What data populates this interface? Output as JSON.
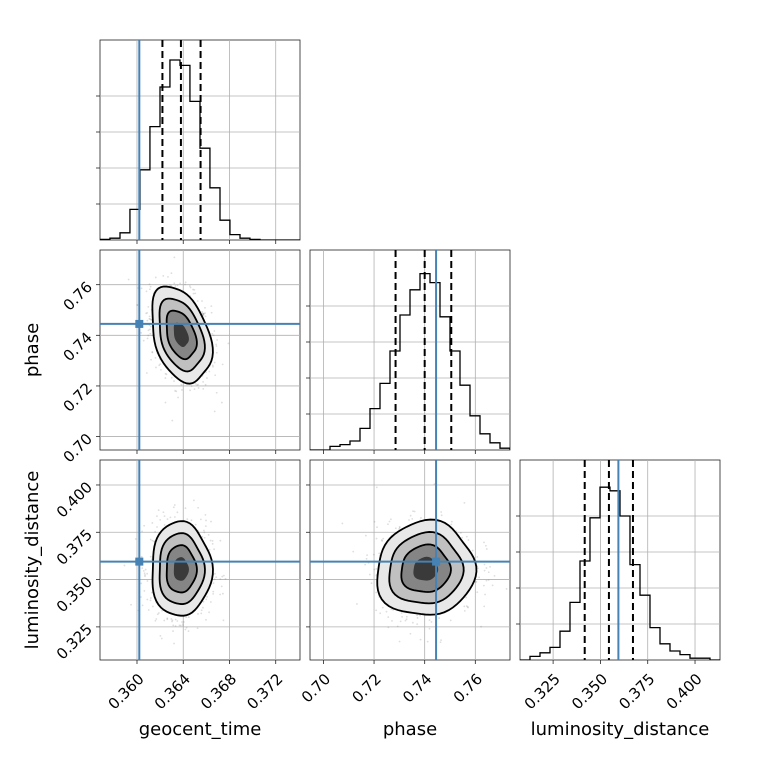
{
  "chart_data": {
    "type": "corner",
    "parameters": [
      "geocent_time",
      "phase",
      "luminosity_distance"
    ],
    "truths": {
      "geocent_time": 0.3602,
      "phase": 0.7445,
      "luminosity_distance": 0.3595
    },
    "ranges": {
      "geocent_time": [
        0.3568,
        0.3741
      ],
      "phase": [
        0.6947,
        0.7737
      ],
      "luminosity_distance": [
        0.3075,
        0.4132
      ]
    },
    "ticks": {
      "geocent_time": [
        0.36,
        0.364,
        0.368,
        0.372
      ],
      "phase": [
        0.7,
        0.72,
        0.74,
        0.76
      ],
      "luminosity_distance": [
        0.325,
        0.35,
        0.375,
        0.4
      ]
    },
    "tick_labels": {
      "geocent_time": [
        "0.360",
        "0.364",
        "0.368",
        "0.372"
      ],
      "phase": [
        "0.70",
        "0.72",
        "0.74",
        "0.76"
      ],
      "luminosity_distance": [
        "0.325",
        "0.350",
        "0.375",
        "0.400"
      ]
    },
    "quantiles": {
      "geocent_time": [
        0.3622,
        0.3638,
        0.3655
      ],
      "phase": [
        0.7285,
        0.74,
        0.7505
      ],
      "luminosity_distance": [
        0.3417,
        0.3545,
        0.3672
      ]
    },
    "marginals": {
      "geocent_time": {
        "bin_edges": [
          0.3568,
          0.35766,
          0.35853,
          0.35939,
          0.36026,
          0.36112,
          0.36199,
          0.36285,
          0.36372,
          0.36458,
          0.36545,
          0.36631,
          0.36718,
          0.36804,
          0.36891,
          0.36977,
          0.37064,
          0.3715,
          0.37237,
          0.37323,
          0.3741
        ],
        "counts": [
          0.003,
          0.01,
          0.04,
          0.17,
          0.39,
          0.63,
          0.85,
          1.0,
          0.97,
          0.77,
          0.51,
          0.29,
          0.11,
          0.03,
          0.01,
          0.003,
          0.0,
          0.0,
          0.0,
          0.0
        ]
      },
      "phase": {
        "bin_edges": [
          0.6947,
          0.69865,
          0.7026,
          0.70655,
          0.7105,
          0.71445,
          0.7184,
          0.72235,
          0.7263,
          0.73025,
          0.7342,
          0.73815,
          0.7421,
          0.74605,
          0.75,
          0.75395,
          0.7579,
          0.76185,
          0.7658,
          0.76975,
          0.7737
        ],
        "counts": [
          0.0,
          0.0,
          0.02,
          0.03,
          0.05,
          0.12,
          0.23,
          0.37,
          0.55,
          0.75,
          0.89,
          0.98,
          0.93,
          0.74,
          0.55,
          0.36,
          0.19,
          0.09,
          0.04,
          0.01
        ]
      },
      "luminosity_distance": {
        "bin_edges": [
          0.3075,
          0.31278,
          0.31807,
          0.32335,
          0.32864,
          0.33392,
          0.33921,
          0.34449,
          0.34978,
          0.35506,
          0.36035,
          0.36563,
          0.37092,
          0.3762,
          0.38149,
          0.38677,
          0.39206,
          0.39734,
          0.40263,
          0.40791,
          0.4132
        ],
        "counts": [
          0.0,
          0.02,
          0.04,
          0.07,
          0.16,
          0.32,
          0.55,
          0.79,
          0.96,
          0.94,
          0.8,
          0.53,
          0.36,
          0.18,
          0.09,
          0.05,
          0.03,
          0.01,
          0.01,
          0.0
        ]
      }
    },
    "joint": {
      "phase|geocent_time": {
        "center": [
          0.3638,
          0.7402
        ],
        "sigma": [
          0.0013,
          0.0095
        ],
        "rho": -0.35
      },
      "luminosity_distance|geocent_time": {
        "center": [
          0.3638,
          0.3555
        ],
        "sigma": [
          0.0013,
          0.0125
        ],
        "rho": 0.0
      },
      "luminosity_distance|phase": {
        "center": [
          0.7403,
          0.3555
        ],
        "sigma": [
          0.0097,
          0.0125
        ],
        "rho": 0.05
      }
    },
    "grid": true,
    "colors": {
      "truth": "#4682b4",
      "histogram": "#000000",
      "samples": "#7a7a7a"
    }
  }
}
